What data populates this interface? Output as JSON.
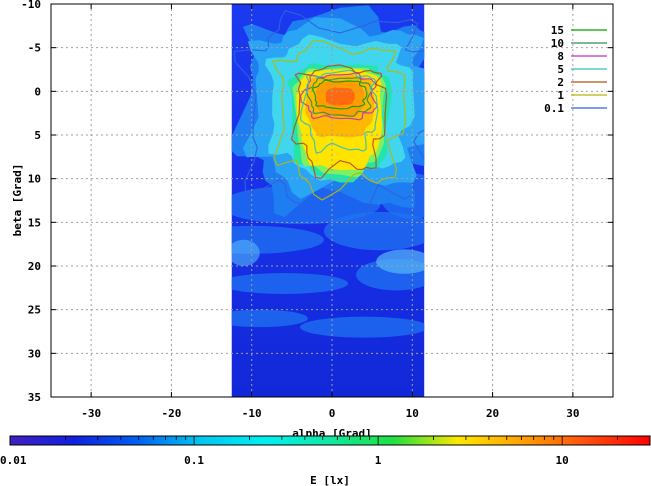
{
  "chart_data": {
    "type": "heatmap",
    "xlabel": "alpha [Grad]",
    "ylabel": "beta [Grad]",
    "xlim": [
      -35,
      35
    ],
    "ylim": [
      -10,
      35
    ],
    "y_inverted": true,
    "grid": true,
    "x_ticks": [
      "-30",
      "-20",
      "-10",
      "0",
      "10",
      "20",
      "30"
    ],
    "y_ticks": [
      "-10",
      "-5",
      "0",
      "5",
      "10",
      "15",
      "20",
      "25",
      "30",
      "35"
    ],
    "data_extent": {
      "alpha": [
        -12.5,
        11.5
      ],
      "beta": [
        -10,
        35
      ]
    },
    "peak": {
      "alpha": 1,
      "beta": 0.5,
      "E": 18
    },
    "contour_levels": [
      {
        "label": "15",
        "color": "#00a000"
      },
      {
        "label": "10",
        "color": "#2f8f4f"
      },
      {
        "label": "8",
        "color": "#c030c0"
      },
      {
        "label": "5",
        "color": "#30c0c0"
      },
      {
        "label": "2",
        "color": "#b05010"
      },
      {
        "label": "1",
        "color": "#b8b800"
      },
      {
        "label": "0.1",
        "color": "#3060e0"
      }
    ],
    "legend_position": "top-right",
    "colorbar": {
      "label": "E [lx]",
      "scale": "log",
      "range": [
        0.01,
        30
      ],
      "ticks": [
        "0.01",
        "0.1",
        "1",
        "10"
      ],
      "colors": [
        "#4020c0",
        "#1020e0",
        "#0060f0",
        "#00c8f0",
        "#00f0f0",
        "#10e8a0",
        "#20e040",
        "#ffe800",
        "#ffa000",
        "#ff5010",
        "#ff0000"
      ]
    }
  }
}
